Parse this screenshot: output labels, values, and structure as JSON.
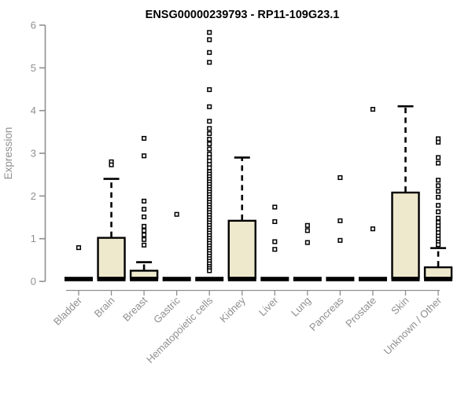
{
  "chart_data": {
    "type": "boxplot",
    "title": "ENSG00000239793 - RP11-109G23.1",
    "ylabel": "Expression",
    "ylim": [
      0,
      6
    ],
    "yticks": [
      0,
      1,
      2,
      3,
      4,
      5,
      6
    ],
    "grid": "off",
    "legend": "none",
    "colors": {
      "axis": "#8f8f8f",
      "line": "#000000",
      "box_fill": "#EEE8CD",
      "background": "#ffffff"
    },
    "categories": [
      "Bladder",
      "Brain",
      "Breast",
      "Gastric",
      "Hematopoietic cells",
      "Kidney",
      "Liver",
      "Lung",
      "Pancreas",
      "Prostate",
      "Skin",
      "Unknown / Other"
    ],
    "boxes": [
      {
        "category": "Bladder",
        "q1": 0,
        "median": 0,
        "q3": 0,
        "whisker_low": 0,
        "whisker_high": 0,
        "outliers": [
          0.79
        ]
      },
      {
        "category": "Brain",
        "q1": 0,
        "median": 0,
        "q3": 1.02,
        "whisker_low": 0,
        "whisker_high": 2.4,
        "outliers": [
          2.8,
          2.73
        ]
      },
      {
        "category": "Breast",
        "q1": 0,
        "median": 0,
        "q3": 0.25,
        "whisker_low": 0,
        "whisker_high": 0.45,
        "outliers": [
          3.35,
          2.94,
          1.88,
          1.69,
          1.51,
          1.29,
          1.19,
          1.09,
          0.98,
          0.85
        ]
      },
      {
        "category": "Gastric",
        "q1": 0,
        "median": 0,
        "q3": 0,
        "whisker_low": 0,
        "whisker_high": 0,
        "outliers": [
          1.57
        ]
      },
      {
        "category": "Hematopoietic cells",
        "q1": 0,
        "median": 0,
        "q3": 0,
        "whisker_low": 0,
        "whisker_high": 0,
        "outliers": [
          5.83,
          5.66,
          5.36,
          5.13,
          4.49,
          4.09,
          3.75,
          3.58,
          3.46,
          3.33,
          3.22,
          3.1,
          2.98,
          2.9,
          2.82,
          2.74,
          2.66,
          2.57,
          2.51,
          2.45,
          2.39,
          2.33,
          2.27,
          2.21,
          2.15,
          2.09,
          2.03,
          1.97,
          1.91,
          1.85,
          1.79,
          1.73,
          1.67,
          1.61,
          1.55,
          1.49,
          1.43,
          1.37,
          1.31,
          1.25,
          1.19,
          1.13,
          1.07,
          1.01,
          0.95,
          0.89,
          0.83,
          0.77,
          0.71,
          0.65,
          0.59,
          0.53,
          0.47,
          0.41,
          0.35,
          0.3,
          0.25
        ]
      },
      {
        "category": "Kidney",
        "q1": 0,
        "median": 0,
        "q3": 1.42,
        "whisker_low": 0,
        "whisker_high": 2.9,
        "outliers": []
      },
      {
        "category": "Liver",
        "q1": 0,
        "median": 0,
        "q3": 0,
        "whisker_low": 0,
        "whisker_high": 0,
        "outliers": [
          1.74,
          1.4,
          0.93,
          0.75
        ]
      },
      {
        "category": "Lung",
        "q1": 0,
        "median": 0,
        "q3": 0,
        "whisker_low": 0,
        "whisker_high": 0,
        "outliers": [
          1.31,
          1.19,
          0.91
        ]
      },
      {
        "category": "Pancreas",
        "q1": 0,
        "median": 0,
        "q3": 0,
        "whisker_low": 0,
        "whisker_high": 0,
        "outliers": [
          2.43,
          1.42,
          0.96
        ]
      },
      {
        "category": "Prostate",
        "q1": 0,
        "median": 0,
        "q3": 0,
        "whisker_low": 0,
        "whisker_high": 0,
        "outliers": [
          4.03,
          1.23
        ]
      },
      {
        "category": "Skin",
        "q1": 0,
        "median": 0,
        "q3": 2.08,
        "whisker_low": 0,
        "whisker_high": 4.1,
        "outliers": []
      },
      {
        "category": "Unknown / Other",
        "q1": 0,
        "median": 0,
        "q3": 0.33,
        "whisker_low": 0,
        "whisker_high": 0.78,
        "outliers": [
          3.34,
          3.26,
          2.9,
          2.77,
          2.37,
          2.24,
          2.11,
          1.97,
          1.78,
          1.63,
          1.48,
          1.38,
          1.3,
          1.22,
          1.14,
          1.06,
          0.99,
          0.92,
          0.86
        ]
      }
    ]
  }
}
